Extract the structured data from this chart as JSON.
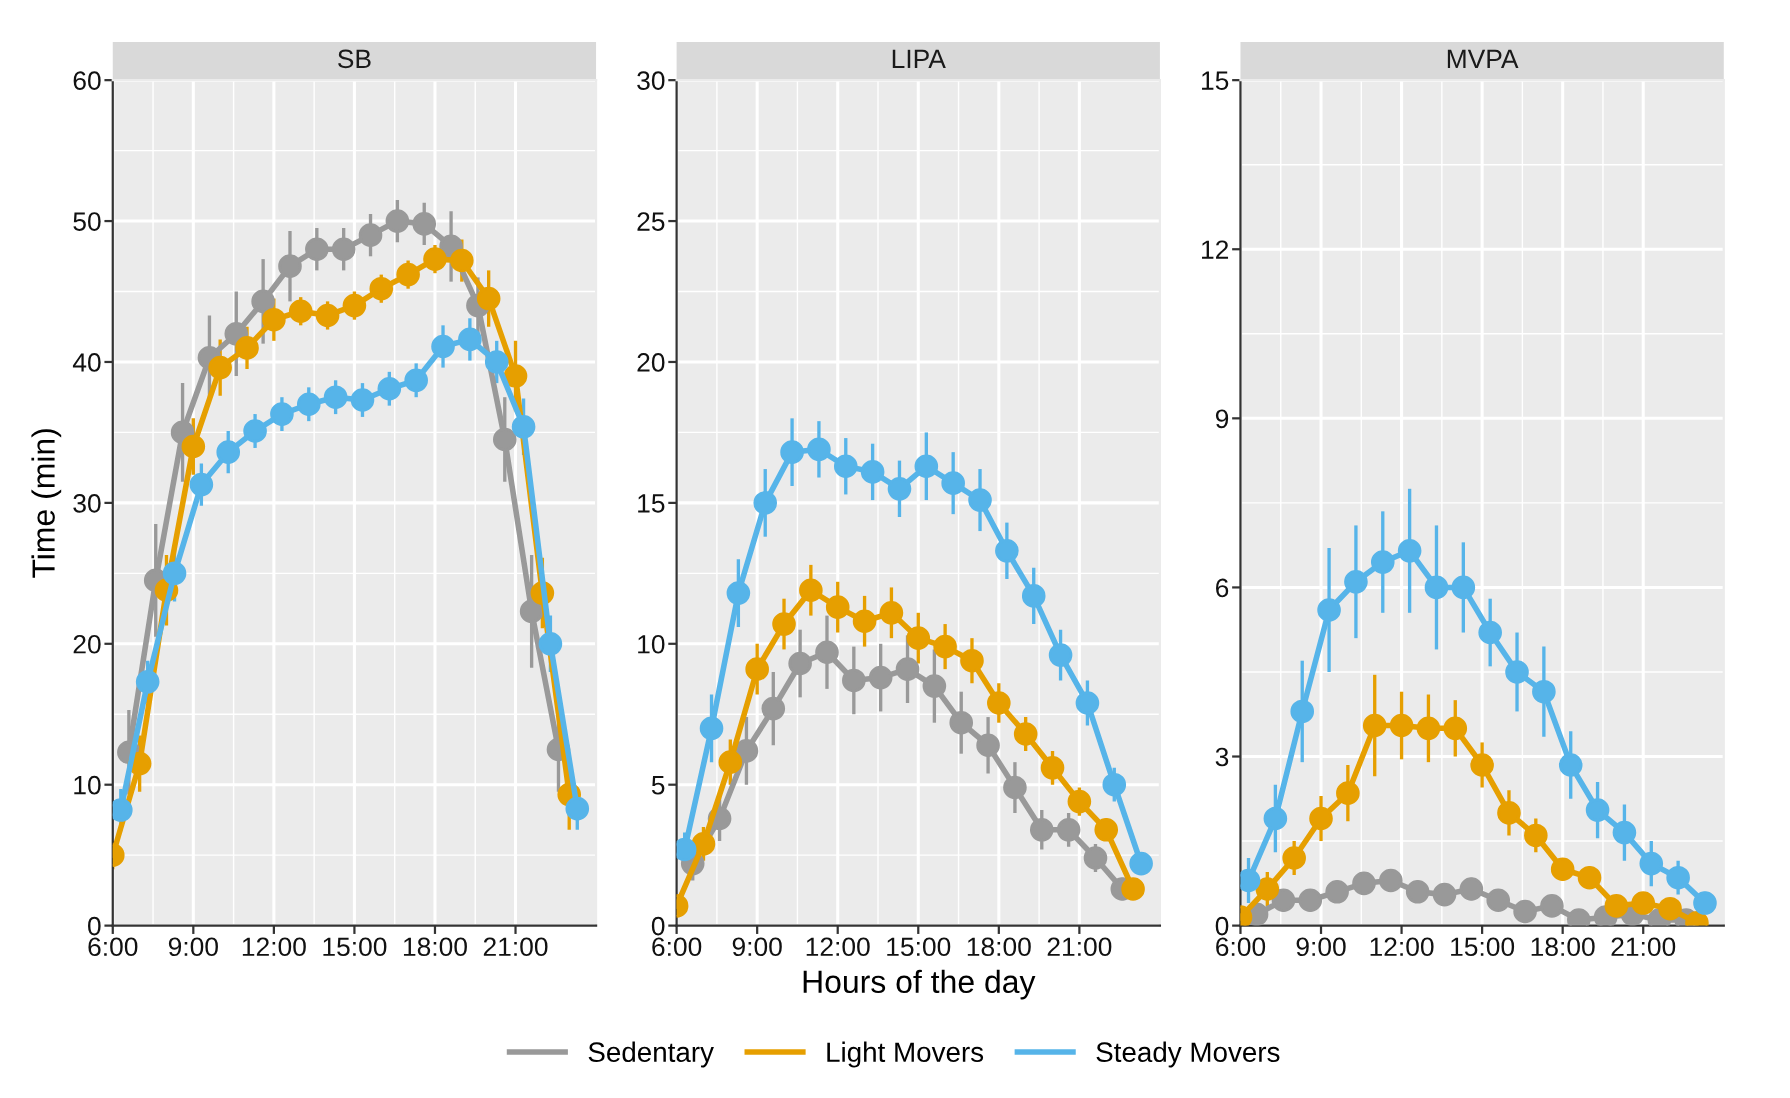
{
  "chart_data": [
    {
      "type": "line",
      "title": "SB",
      "ylabel": "Time (min)",
      "xlim": [
        6,
        24
      ],
      "ylim": [
        0,
        60
      ],
      "yticks": [
        0,
        10,
        20,
        30,
        40,
        50,
        60
      ],
      "xticks": [
        {
          "value": 6,
          "label": "6:00"
        },
        {
          "value": 9,
          "label": "9:00"
        },
        {
          "value": 12,
          "label": "12:00"
        },
        {
          "value": 15,
          "label": "15:00"
        },
        {
          "value": 18,
          "label": "18:00"
        },
        {
          "value": 21,
          "label": "21:00"
        }
      ],
      "grid": true,
      "marker": "circle",
      "line_style": "solid",
      "legend": "bottom",
      "series": [
        {
          "name": "Sedentary",
          "color": "#999999",
          "x": [
            6.6,
            7.6,
            8.6,
            9.6,
            10.6,
            11.6,
            12.6,
            13.6,
            14.6,
            15.6,
            16.6,
            17.6,
            18.6,
            19.6,
            20.6,
            21.6,
            22.6
          ],
          "values": [
            12.3,
            24.5,
            35,
            40.3,
            42,
            44.3,
            46.8,
            48,
            48,
            49,
            50,
            49.8,
            48.2,
            44,
            34.5,
            22.3,
            12.5
          ],
          "errors": [
            3,
            4,
            3.5,
            3,
            3,
            3,
            2.5,
            1.5,
            1.5,
            1.5,
            1.5,
            1.5,
            2.5,
            2,
            3,
            4,
            3
          ]
        },
        {
          "name": "Light Movers",
          "color": "#E69F00",
          "x": [
            6,
            7,
            8,
            9,
            10,
            11,
            12,
            13,
            14,
            15,
            16,
            17,
            18,
            19,
            20,
            21,
            22,
            23
          ],
          "values": [
            5,
            11.5,
            23.8,
            34,
            39.6,
            41,
            43,
            43.6,
            43.3,
            44,
            45.2,
            46.2,
            47.3,
            47.2,
            44.5,
            39,
            23.6,
            9.3
          ],
          "errors": [
            1,
            2,
            2.5,
            2,
            2,
            1.5,
            1.5,
            1,
            1,
            1,
            1,
            1,
            1,
            1.5,
            2,
            2.5,
            2.5,
            2.5
          ]
        },
        {
          "name": "Steady Movers",
          "color": "#56B4E9",
          "x": [
            6.3,
            7.3,
            8.3,
            9.3,
            10.3,
            11.3,
            12.3,
            13.3,
            14.3,
            15.3,
            16.3,
            17.3,
            18.3,
            19.3,
            20.3,
            21.3,
            22.3,
            23.3
          ],
          "values": [
            8.2,
            17.3,
            25,
            31.3,
            33.6,
            35.1,
            36.3,
            37,
            37.5,
            37.3,
            38.1,
            38.7,
            41.1,
            41.6,
            40,
            35.4,
            20,
            8.3
          ],
          "errors": [
            1.5,
            1.5,
            2,
            1.5,
            1.5,
            1.2,
            1.2,
            1.2,
            1.2,
            1.2,
            1.2,
            1.2,
            1.5,
            1.5,
            1.5,
            2,
            2,
            1.5
          ]
        }
      ]
    },
    {
      "type": "line",
      "title": "LIPA",
      "xlabel": "Hours of the day",
      "xlim": [
        6,
        24
      ],
      "ylim": [
        0,
        30
      ],
      "yticks": [
        0,
        5,
        10,
        15,
        20,
        25,
        30
      ],
      "xticks": [
        {
          "value": 6,
          "label": "6:00"
        },
        {
          "value": 9,
          "label": "9:00"
        },
        {
          "value": 12,
          "label": "12:00"
        },
        {
          "value": 15,
          "label": "15:00"
        },
        {
          "value": 18,
          "label": "18:00"
        },
        {
          "value": 21,
          "label": "21:00"
        }
      ],
      "grid": true,
      "marker": "circle",
      "line_style": "solid",
      "series": [
        {
          "color": "#999999",
          "x": [
            6.6,
            7.6,
            8.6,
            9.6,
            10.6,
            11.6,
            12.6,
            13.6,
            14.6,
            15.6,
            16.6,
            17.6,
            18.6,
            19.6,
            20.6,
            21.6,
            22.6
          ],
          "values": [
            2.2,
            3.8,
            6.2,
            7.7,
            9.3,
            9.7,
            8.7,
            8.8,
            9.1,
            8.5,
            7.2,
            6.4,
            4.9,
            3.4,
            3.4,
            2.4,
            1.3
          ],
          "errors": [
            0.6,
            0.8,
            1.2,
            1.3,
            1.2,
            1.3,
            1.2,
            1.2,
            1.2,
            1.3,
            1.1,
            1,
            0.9,
            0.7,
            0.6,
            0.5,
            0.4
          ]
        },
        {
          "color": "#E69F00",
          "x": [
            6,
            7,
            8,
            9,
            10,
            11,
            12,
            13,
            14,
            15,
            16,
            17,
            18,
            19,
            20,
            21,
            22,
            23
          ],
          "values": [
            0.7,
            2.9,
            5.8,
            9.1,
            10.7,
            11.9,
            11.3,
            10.8,
            11.1,
            10.2,
            9.9,
            9.4,
            7.9,
            6.8,
            5.6,
            4.4,
            3.4,
            1.3
          ],
          "errors": [
            0.4,
            0.6,
            0.8,
            0.9,
            0.9,
            0.9,
            0.9,
            0.9,
            0.9,
            0.9,
            0.8,
            0.8,
            0.7,
            0.6,
            0.6,
            0.5,
            0.4,
            0.3
          ]
        },
        {
          "color": "#56B4E9",
          "x": [
            6.3,
            7.3,
            8.3,
            9.3,
            10.3,
            11.3,
            12.3,
            13.3,
            14.3,
            15.3,
            16.3,
            17.3,
            18.3,
            19.3,
            20.3,
            21.3,
            22.3,
            23.3
          ],
          "values": [
            2.7,
            7,
            11.8,
            15,
            16.8,
            16.9,
            16.3,
            16.1,
            15.5,
            16.3,
            15.7,
            15.1,
            13.3,
            11.7,
            9.6,
            7.9,
            5,
            2.2
          ],
          "errors": [
            0.6,
            1.2,
            1.2,
            1.2,
            1.2,
            1,
            1,
            1,
            1,
            1.2,
            1.1,
            1.1,
            1,
            1,
            0.9,
            0.8,
            0.6,
            0.4
          ]
        }
      ]
    },
    {
      "type": "line",
      "title": "MVPA",
      "xlim": [
        6,
        24
      ],
      "ylim": [
        0,
        15
      ],
      "yticks": [
        0,
        3,
        6,
        9,
        12,
        15
      ],
      "xticks": [
        {
          "value": 6,
          "label": "6:00"
        },
        {
          "value": 9,
          "label": "9:00"
        },
        {
          "value": 12,
          "label": "12:00"
        },
        {
          "value": 15,
          "label": "15:00"
        },
        {
          "value": 18,
          "label": "18:00"
        },
        {
          "value": 21,
          "label": "21:00"
        }
      ],
      "grid": true,
      "marker": "circle",
      "line_style": "solid",
      "series": [
        {
          "color": "#999999",
          "x": [
            6.6,
            7.6,
            8.6,
            9.6,
            10.6,
            11.6,
            12.6,
            13.6,
            14.6,
            15.6,
            16.6,
            17.6,
            18.6,
            19.6,
            20.6,
            21.6,
            22.6
          ],
          "values": [
            0.2,
            0.45,
            0.45,
            0.6,
            0.75,
            0.8,
            0.6,
            0.55,
            0.65,
            0.45,
            0.25,
            0.35,
            0.1,
            0.15,
            0.2,
            0.1,
            0.1
          ],
          "errors": [
            0.15,
            0.2,
            0.2,
            0.2,
            0.2,
            0.2,
            0.2,
            0.15,
            0.2,
            0.15,
            0.1,
            0.15,
            0.05,
            0.1,
            0.1,
            0.05,
            0.05
          ]
        },
        {
          "color": "#E69F00",
          "x": [
            6,
            7,
            8,
            9,
            10,
            11,
            12,
            13,
            14,
            15,
            16,
            17,
            18,
            19,
            20,
            21,
            22,
            23
          ],
          "values": [
            0.15,
            0.65,
            1.2,
            1.9,
            2.35,
            3.55,
            3.55,
            3.5,
            3.5,
            2.85,
            2.0,
            1.6,
            1.0,
            0.85,
            0.35,
            0.4,
            0.3,
            0.05
          ],
          "errors": [
            0.1,
            0.3,
            0.3,
            0.4,
            0.5,
            0.9,
            0.6,
            0.6,
            0.5,
            0.4,
            0.4,
            0.3,
            0.2,
            0.2,
            0.1,
            0.1,
            0.1,
            0.05
          ]
        },
        {
          "color": "#56B4E9",
          "x": [
            6.3,
            7.3,
            8.3,
            9.3,
            10.3,
            11.3,
            12.3,
            13.3,
            14.3,
            15.3,
            16.3,
            17.3,
            18.3,
            19.3,
            20.3,
            21.3,
            22.3,
            23.3
          ],
          "values": [
            0.8,
            1.9,
            3.8,
            5.6,
            6.1,
            6.45,
            6.65,
            6.0,
            6.0,
            5.2,
            4.5,
            4.15,
            2.85,
            2.05,
            1.65,
            1.1,
            0.85,
            0.4
          ],
          "errors": [
            0.4,
            0.6,
            0.9,
            1.1,
            1.0,
            0.9,
            1.1,
            1.1,
            0.8,
            0.6,
            0.7,
            0.8,
            0.6,
            0.5,
            0.5,
            0.4,
            0.3,
            0.2
          ]
        }
      ]
    }
  ]
}
